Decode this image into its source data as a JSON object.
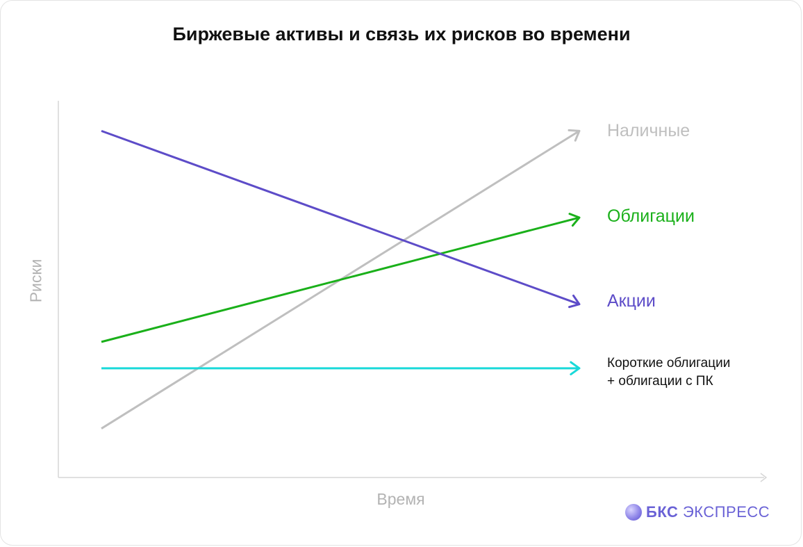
{
  "chart_data": {
    "type": "line",
    "title": "Биржевые активы и связь их рисков во времени",
    "xlabel": "Время",
    "ylabel": "Риски",
    "xlim": [
      0,
      1
    ],
    "ylim": [
      0,
      1
    ],
    "grid": false,
    "series": [
      {
        "key": "cash",
        "name": "Наличные",
        "color": "#bfbfbf",
        "x": [
          0,
          1
        ],
        "y": [
          0.13,
          0.92
        ]
      },
      {
        "key": "bonds",
        "name": "Облигации",
        "color": "#1ab01a",
        "x": [
          0,
          1
        ],
        "y": [
          0.36,
          0.69
        ]
      },
      {
        "key": "stocks",
        "name": "Акции",
        "color": "#5d4cc8",
        "x": [
          0,
          1
        ],
        "y": [
          0.92,
          0.46
        ]
      },
      {
        "key": "short",
        "name": "Короткие облигации\n+ облигации с ПК",
        "color": "#1ad9d9",
        "x": [
          0,
          1
        ],
        "y": [
          0.29,
          0.29
        ]
      }
    ]
  },
  "brand": {
    "bold": "БКС",
    "rest": "ЭКСПРЕСС",
    "color": "#6a62d6"
  }
}
